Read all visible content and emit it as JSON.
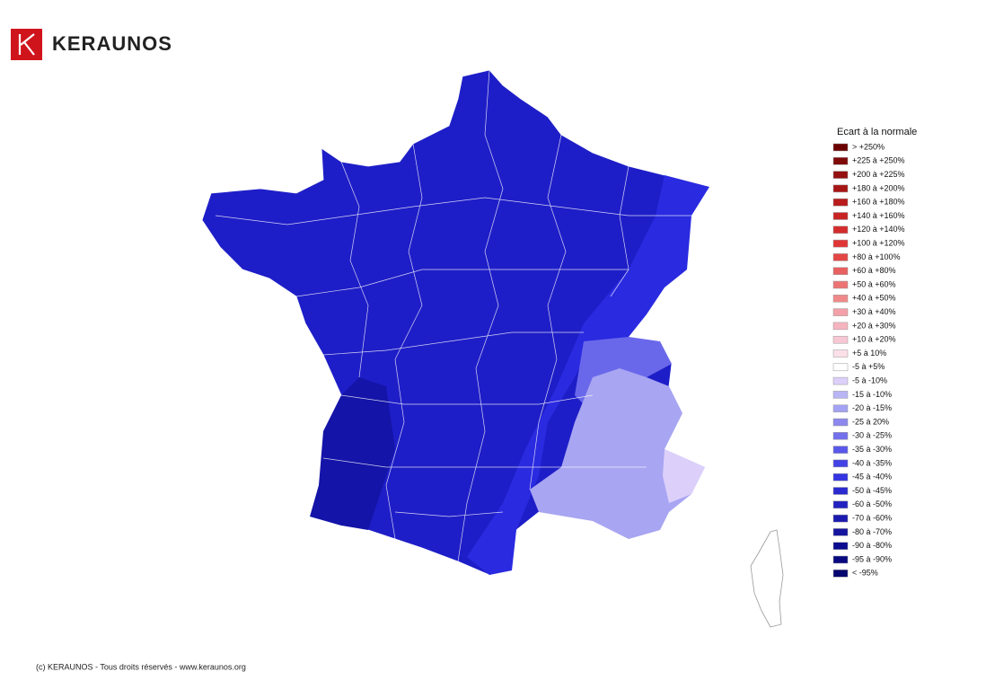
{
  "header": {
    "brand": "KERAUNOS"
  },
  "legend": {
    "title": "Ecart à la normale",
    "items": [
      {
        "label": "> +250%",
        "color": "#6b0000"
      },
      {
        "label": "+225 à +250%",
        "color": "#7f0a0a"
      },
      {
        "label": "+200 à +225%",
        "color": "#951010"
      },
      {
        "label": "+180 à +200%",
        "color": "#a81515"
      },
      {
        "label": "+160 à +180%",
        "color": "#b81c1c"
      },
      {
        "label": "+140 à +160%",
        "color": "#c82424"
      },
      {
        "label": "+120 à +140%",
        "color": "#d42c2c"
      },
      {
        "label": "+100 à +120%",
        "color": "#e03636"
      },
      {
        "label": "+80 à +100%",
        "color": "#e44646"
      },
      {
        "label": "+60 à +80%",
        "color": "#e86060"
      },
      {
        "label": "+50 à +60%",
        "color": "#ec7474"
      },
      {
        "label": "+40 à +50%",
        "color": "#f08a8a"
      },
      {
        "label": "+30 à +40%",
        "color": "#f3a0a8"
      },
      {
        "label": "+20 à +30%",
        "color": "#f5b4bf"
      },
      {
        "label": "+10 à +20%",
        "color": "#f7c8d3"
      },
      {
        "label": "+5 à 10%",
        "color": "#fbe0e8"
      },
      {
        "label": "-5 à +5%",
        "color": "#ffffff"
      },
      {
        "label": "-5 à -10%",
        "color": "#dcd0fa"
      },
      {
        "label": "-15 à -10%",
        "color": "#b9b5f5"
      },
      {
        "label": "-20 à -15%",
        "color": "#a4a2f2"
      },
      {
        "label": "-25 à 20%",
        "color": "#8c88ee"
      },
      {
        "label": "-30 à -25%",
        "color": "#7370ec"
      },
      {
        "label": "-35 à -30%",
        "color": "#5a58ea"
      },
      {
        "label": "-40 à -35%",
        "color": "#4242e6"
      },
      {
        "label": "-45 à -40%",
        "color": "#3434e2"
      },
      {
        "label": "-50 à -45%",
        "color": "#2a2ad0"
      },
      {
        "label": "-60 à -50%",
        "color": "#2222c0"
      },
      {
        "label": "-70 à -60%",
        "color": "#1a1ab0"
      },
      {
        "label": "-80 à -70%",
        "color": "#1414a0"
      },
      {
        "label": "-90 à -80%",
        "color": "#0c0c90"
      },
      {
        "label": "-95 à -90%",
        "color": "#080880"
      },
      {
        "label": "< -95%",
        "color": "#060670"
      }
    ]
  },
  "footer": {
    "copyright": "(c) KERAUNOS - Tous droits réservés - www.keraunos.org"
  }
}
